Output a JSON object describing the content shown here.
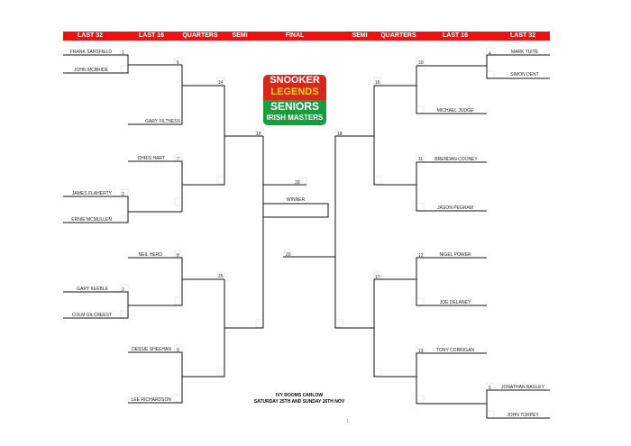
{
  "header": {
    "rounds": [
      "LAST 32",
      "LAST 16",
      "QUARTERS",
      "SEMI",
      "FINAL",
      "SEMI",
      "QUARTERS",
      "LAST 16",
      "LAST 32"
    ],
    "color": "#ee1111"
  },
  "logo": {
    "line1": "SNOOKER",
    "line2": "LEGENDS",
    "line3": "SENIORS",
    "line4": "IRISH MASTERS"
  },
  "left": {
    "players": [
      "FRANK SARSFIELD",
      "JOHN MCBRIDE",
      "GARY FILTNESS",
      "CHRIS HART",
      "JAMES FLAHERTY",
      "ERNIE MCMULLEN",
      "NEIL HERD",
      "GARY KEEBLE",
      "COLM GILCREEST",
      "DESSIE SHEEHAN",
      "LEE RICHARDSON"
    ],
    "matches": [
      "1",
      "6",
      "14",
      "7",
      "2",
      "19",
      "8",
      "3",
      "15",
      "9"
    ]
  },
  "right": {
    "players": [
      "MARK TUITE",
      "SIMON DENT",
      "MICHAEL JUDGE",
      "BRENDAN COONEY",
      "JASON PEGRAM",
      "NIGEL POWER",
      "JOE DELANEY",
      "TONY CORRIGAN",
      "JONATHAN BAGLEY",
      "JOHN TORPEY"
    ],
    "matches": [
      "4",
      "10",
      "16",
      "11",
      "18",
      "12",
      "17",
      "13",
      "5"
    ]
  },
  "final": {
    "match_top": "20",
    "match_bottom": "20",
    "winner_label": "WINNER"
  },
  "venue": {
    "line1": "IVY ROOMS CARLOW",
    "line2": "SATURDAY 25TH AND SUNDAY 26TH NOV"
  },
  "page_number": "1"
}
